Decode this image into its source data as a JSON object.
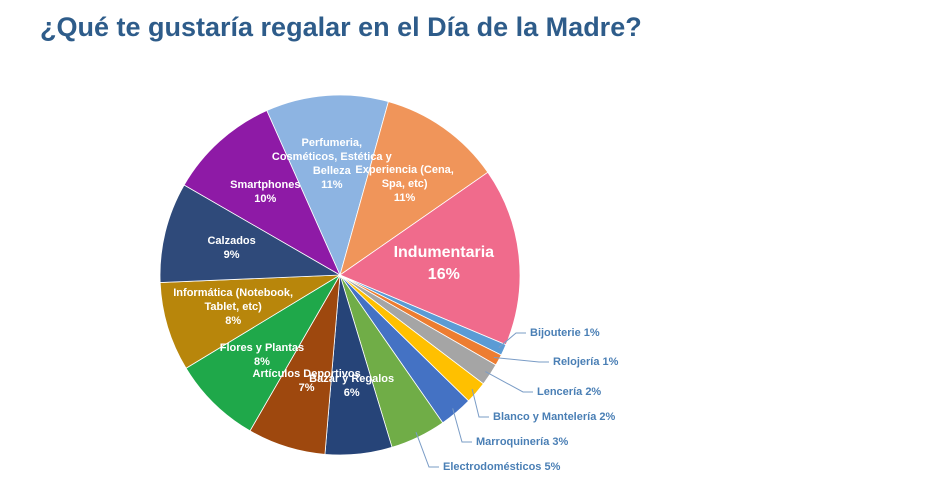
{
  "chart_data": {
    "type": "pie",
    "title": "¿Qué te gustaría regalar en el Día de la Madre?",
    "categories": [
      "Perfumeria, Cosméticos, Estética y Belleza",
      "Experiencia (Cena, Spa, etc)",
      "Indumentaria",
      "Bijouterie",
      "Relojería",
      "Lencería",
      "Blanco y Mantelería",
      "Marroquinería",
      "Electrodomésticos",
      "Bazar y Regalos",
      "Artículos Deportivos",
      "Flores y Plantas",
      "Informática (Notebook, Tablet, etc)",
      "Calzados",
      "Smartphones"
    ],
    "values": [
      11,
      11,
      16,
      1,
      1,
      2,
      2,
      3,
      5,
      6,
      7,
      8,
      8,
      9,
      10
    ],
    "value_labels": [
      "11%",
      "11%",
      "16%",
      "1%",
      "1%",
      "2%",
      "2%",
      "3%",
      "5%",
      "6%",
      "7%",
      "8%",
      "8%",
      "9%",
      "10%"
    ],
    "colors": [
      "#8db4e2",
      "#f0955a",
      "#f06b8c",
      "#5b9bd5",
      "#ed7d31",
      "#a5a5a5",
      "#ffc000",
      "#4472c4",
      "#70ad47",
      "#264478",
      "#9e480e",
      "#1fa84a",
      "#b8860b",
      "#2f4a7a",
      "#8e1aa6"
    ]
  }
}
